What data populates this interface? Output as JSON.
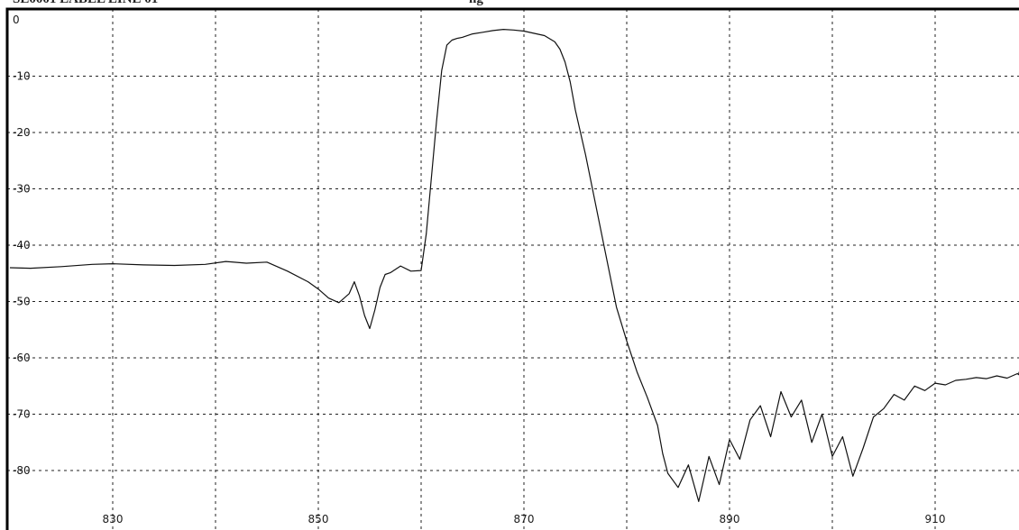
{
  "header_fragments": [
    {
      "text": "SE0001 LABEL LINE 01"
    },
    {
      "text": "ng"
    }
  ],
  "chart_data": {
    "type": "line",
    "title": "",
    "xlabel": "",
    "ylabel": "",
    "xlim": [
      820,
      920
    ],
    "ylim": [
      -88,
      0
    ],
    "grid": true,
    "x_ticks": [
      830,
      840,
      850,
      860,
      870,
      880,
      890,
      900,
      910
    ],
    "x_tick_labels": [
      "830",
      "",
      "850",
      "",
      "870",
      "",
      "890",
      "",
      "910"
    ],
    "y_ticks": [
      0,
      -10,
      -20,
      -30,
      -40,
      -50,
      -60,
      -70,
      -80
    ],
    "y_tick_labels": [
      "0",
      "-10",
      "-20",
      "-30",
      "-40",
      "-50",
      "-60",
      "-70",
      "-80"
    ],
    "series": [
      {
        "x": [
          820,
          822,
          825,
          828,
          830,
          833,
          836,
          839,
          841,
          843,
          845,
          847,
          849,
          850,
          851,
          852,
          853,
          853.5,
          854,
          854.5,
          855,
          855.5,
          856,
          856.5,
          857,
          858,
          859,
          860,
          860.5,
          861,
          861.5,
          862,
          862.5,
          863,
          863.5,
          864,
          865,
          866,
          867,
          868,
          869,
          870,
          871,
          872,
          873,
          873.5,
          874,
          874.5,
          875,
          876,
          877,
          878,
          879,
          880,
          881,
          882,
          883,
          883.5,
          884,
          885,
          886,
          887,
          888,
          889,
          890,
          891,
          892,
          893,
          894,
          895,
          896,
          897,
          898,
          899,
          900,
          901,
          902,
          903,
          904,
          905,
          906,
          907,
          908,
          909,
          910,
          911,
          912,
          913,
          914,
          915,
          916,
          917,
          918,
          919,
          920
        ],
        "y": [
          -44.0,
          -44.1,
          -43.8,
          -43.4,
          -43.3,
          -43.5,
          -43.6,
          -43.4,
          -42.9,
          -43.2,
          -43.0,
          -44.6,
          -46.5,
          -47.8,
          -49.4,
          -50.2,
          -48.6,
          -46.5,
          -49.0,
          -52.5,
          -54.8,
          -51.5,
          -47.5,
          -45.2,
          -44.9,
          -43.7,
          -44.6,
          -44.5,
          -38.0,
          -28.0,
          -18.0,
          -9.0,
          -4.5,
          -3.6,
          -3.3,
          -3.1,
          -2.5,
          -2.2,
          -1.9,
          -1.7,
          -1.8,
          -2.0,
          -2.4,
          -2.8,
          -3.9,
          -5.2,
          -7.5,
          -11.0,
          -16.0,
          -24.0,
          -33.0,
          -42.0,
          -51.0,
          -57.0,
          -62.5,
          -67.0,
          -72.0,
          -77.0,
          -80.5,
          -83.0,
          -79.0,
          -85.5,
          -77.5,
          -82.5,
          -74.5,
          -78.0,
          -71.0,
          -68.5,
          -74.0,
          -66.0,
          -70.5,
          -67.5,
          -75.0,
          -70.0,
          -77.5,
          -74.0,
          -81.0,
          -76.0,
          -70.5,
          -69.0,
          -66.5,
          -67.5,
          -65.0,
          -65.8,
          -64.5,
          -64.8,
          -64.0,
          -63.8,
          -63.5,
          -63.7,
          -63.2,
          -63.6,
          -62.8,
          -63.0,
          -62.5
        ]
      }
    ]
  }
}
